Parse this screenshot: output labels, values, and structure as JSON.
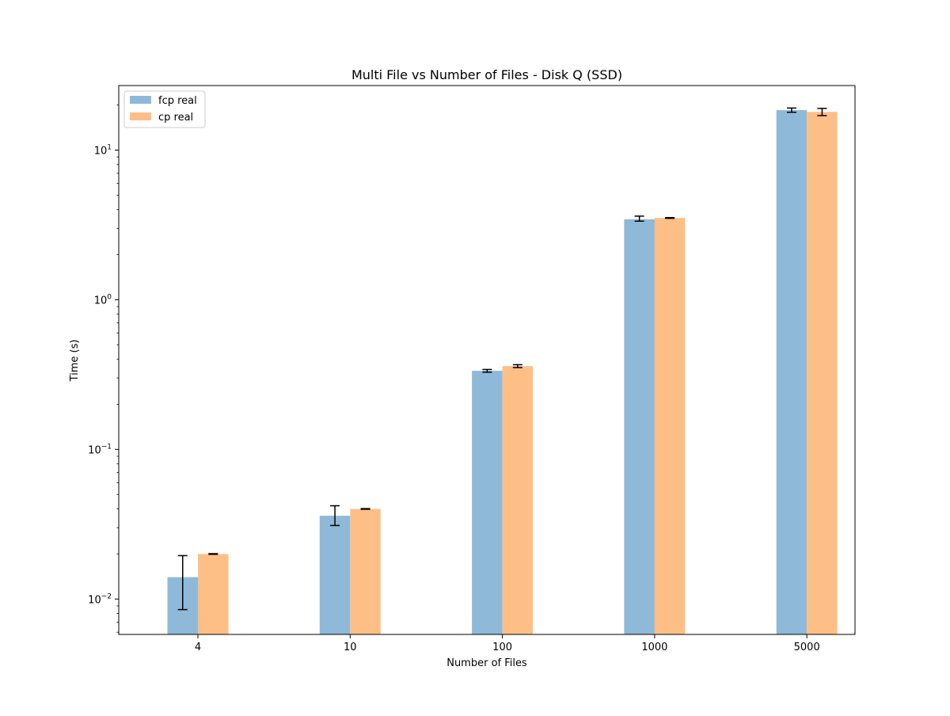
{
  "chart_data": {
    "type": "bar",
    "title": "Multi File vs Number of Files - Disk Q (SSD)",
    "xlabel": "Number of Files",
    "ylabel": "Time (s)",
    "yscale": "log",
    "ylim": [
      0.0058,
      27
    ],
    "grid": false,
    "legend_position": "upper left",
    "categories": [
      "4",
      "10",
      "100",
      "1000",
      "5000"
    ],
    "y_tick_labels": [
      {
        "value": 0.01,
        "base": "10",
        "exp": "−2"
      },
      {
        "value": 0.1,
        "base": "10",
        "exp": "−1"
      },
      {
        "value": 1,
        "base": "10",
        "exp": "0"
      },
      {
        "value": 10,
        "base": "10",
        "exp": "1"
      }
    ],
    "series": [
      {
        "name": "fcp real",
        "color": "#8fb9d8",
        "values": [
          0.014,
          0.036,
          0.335,
          3.45,
          18.5
        ],
        "err_low": [
          0.0085,
          0.031,
          0.328,
          3.35,
          17.9
        ],
        "err_high": [
          0.0195,
          0.042,
          0.342,
          3.62,
          19.1
        ]
      },
      {
        "name": "cp real",
        "color": "#febf87",
        "values": [
          0.02,
          0.04,
          0.36,
          3.52,
          18.0
        ],
        "err_low": [
          0.0199,
          0.0398,
          0.352,
          3.5,
          17.0
        ],
        "err_high": [
          0.0201,
          0.0402,
          0.368,
          3.54,
          19.0
        ]
      }
    ]
  }
}
